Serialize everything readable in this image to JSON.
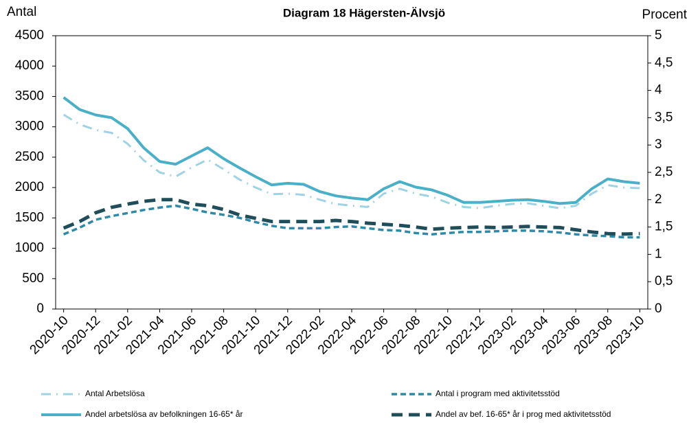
{
  "chart_data": {
    "type": "line",
    "title": "Diagram 18 Hägersten-Älvsjö",
    "y_label": "Antal",
    "y2_label": "Procent",
    "categories": [
      "2020-10",
      null,
      "2020-12",
      null,
      "2021-02",
      null,
      "2021-04",
      null,
      "2021-06",
      null,
      "2021-08",
      null,
      "2021-10",
      null,
      "2021-12",
      null,
      "2022-02",
      null,
      "2022-04",
      null,
      "2022-06",
      null,
      "2022-08",
      null,
      "2022-10",
      null,
      "2022-12",
      null,
      "2023-02",
      null,
      "2023-04",
      null,
      "2023-06",
      null,
      "2023-08",
      null,
      "2023-10"
    ],
    "ylim": [
      0,
      4500
    ],
    "yticks": [
      0,
      500,
      1000,
      1500,
      2000,
      2500,
      3000,
      3500,
      4000,
      4500
    ],
    "y2lim": [
      0,
      5
    ],
    "y2ticks": [
      0,
      {
        "value": 0.5,
        "label": "0,5"
      },
      1,
      {
        "value": 1.5,
        "label": "1,5"
      },
      2,
      {
        "value": 2.5,
        "label": "2,5"
      },
      3,
      {
        "value": 3.5,
        "label": "3,5"
      },
      4,
      {
        "value": 4.5,
        "label": "4,5"
      },
      5
    ],
    "series": [
      {
        "name": "Antal Arbetslösa",
        "color": "#9fd3e3",
        "dash": "dashdot",
        "values": [
          3200,
          3040,
          2950,
          2900,
          2720,
          2450,
          2250,
          2180,
          2330,
          2460,
          2300,
          2130,
          2000,
          1890,
          1900,
          1880,
          1800,
          1730,
          1700,
          1680,
          1900,
          1980,
          1900,
          1850,
          1750,
          1680,
          1660,
          1700,
          1730,
          1740,
          1700,
          1660,
          1700,
          1900,
          2040,
          2000,
          1990
        ]
      },
      {
        "name": "Antal i program med aktivitetsstöd",
        "color": "#2e8aa6",
        "dash": "dash",
        "values": [
          1230,
          1340,
          1470,
          1530,
          1580,
          1630,
          1670,
          1700,
          1650,
          1590,
          1550,
          1500,
          1430,
          1370,
          1330,
          1330,
          1330,
          1350,
          1360,
          1330,
          1300,
          1290,
          1250,
          1230,
          1250,
          1270,
          1270,
          1280,
          1290,
          1290,
          1280,
          1260,
          1230,
          1210,
          1200,
          1180,
          1180
        ]
      },
      {
        "name": "Andel arbetslösa av befolkningen 16-65* år",
        "color": "#4ab0c8",
        "dash": "solid",
        "axis": "y2",
        "values": [
          3.87,
          3.65,
          3.55,
          3.5,
          3.3,
          2.95,
          2.7,
          2.65,
          2.8,
          2.95,
          2.75,
          2.58,
          2.42,
          2.27,
          2.3,
          2.28,
          2.15,
          2.07,
          2.03,
          2.0,
          2.2,
          2.33,
          2.23,
          2.18,
          2.08,
          1.95,
          1.95,
          1.97,
          1.99,
          2.0,
          1.97,
          1.93,
          1.95,
          2.2,
          2.38,
          2.33,
          2.3
        ]
      },
      {
        "name": "Andel av bef. 16-65* år i prog med aktivitetsstöd",
        "color": "#1f4e5a",
        "dash": "longdash",
        "axis": "y2",
        "values": [
          1.48,
          1.6,
          1.76,
          1.86,
          1.92,
          1.97,
          2.0,
          2.0,
          1.92,
          1.89,
          1.82,
          1.72,
          1.66,
          1.6,
          1.6,
          1.6,
          1.6,
          1.62,
          1.6,
          1.57,
          1.55,
          1.53,
          1.5,
          1.46,
          1.48,
          1.49,
          1.5,
          1.49,
          1.5,
          1.51,
          1.5,
          1.49,
          1.45,
          1.41,
          1.38,
          1.37,
          1.38
        ]
      }
    ]
  }
}
